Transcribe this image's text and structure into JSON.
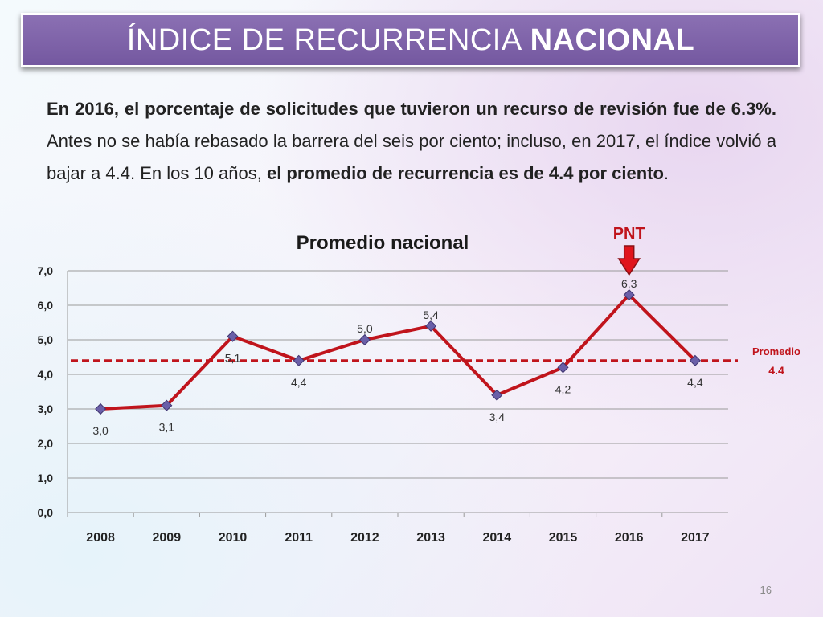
{
  "slide": {
    "title_light": "ÍNDICE DE RECURRENCIA",
    "title_bold": "NACIONAL",
    "paragraph": {
      "b1": "En 2016, el porcentaje de solicitudes que tuvieron un recurso de revisión fue de 6.3%.",
      "t1": " Antes no se había rebasado la barrera del seis por ciento; incluso, en 2017, el índice volvió a bajar a 4.4. En los 10 años, ",
      "b2": "el promedio de recurrencia es de 4.4 por ciento",
      "t2": "."
    },
    "page_number": "16"
  },
  "colors": {
    "title_bg": "#7b5fa8",
    "line": "#c0141c",
    "marker": "#6a5fa8",
    "average_line": "#c0141c",
    "annotation": "#c0141c"
  },
  "chart_data": {
    "type": "line",
    "title": "Promedio nacional",
    "categories": [
      "2008",
      "2009",
      "2010",
      "2011",
      "2012",
      "2013",
      "2014",
      "2015",
      "2016",
      "2017"
    ],
    "values": [
      3.0,
      3.1,
      5.1,
      4.4,
      5.0,
      5.4,
      3.4,
      4.2,
      6.3,
      4.4
    ],
    "data_labels": [
      "3,0",
      "3,1",
      "5,1",
      "4,4",
      "5,0",
      "5,4",
      "3,4",
      "4,2",
      "6,3",
      "4,4"
    ],
    "ylim": [
      0,
      7
    ],
    "yticks": [
      "0,0",
      "1,0",
      "2,0",
      "3,0",
      "4,0",
      "5,0",
      "6,0",
      "7,0"
    ],
    "grid": true,
    "average": {
      "value": 4.4,
      "label_line1": "Promedio",
      "label_line2": "4.4",
      "style": "dashed"
    },
    "annotation": {
      "label": "PNT",
      "category": "2016",
      "icon": "down-arrow-icon"
    },
    "xlabel": "",
    "ylabel": ""
  }
}
